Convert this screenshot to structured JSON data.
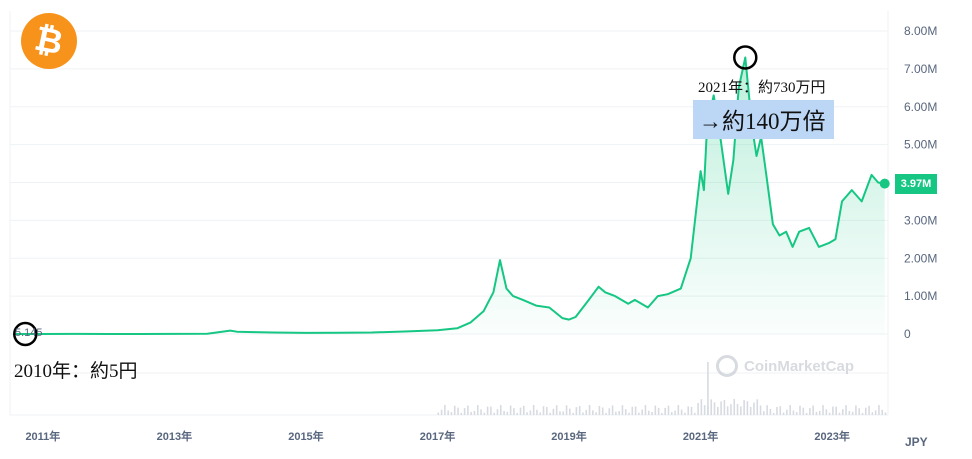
{
  "logo": {
    "icon": "bitcoin-icon",
    "glyph": "₿",
    "color": "#f7931a"
  },
  "annotations": {
    "peak_label": "2021年：約730万円",
    "multiple_label": "→約140万倍",
    "start_label": "2010年：約5円",
    "start_value_label": "5.145"
  },
  "watermark": {
    "icon": "coinmarketcap-icon",
    "text": "CoinMarketCap"
  },
  "current_price_label": "3.97M",
  "currency_label": "JPY",
  "colors": {
    "line": "#16c784",
    "area": "#16c784",
    "badge": "#16c784",
    "highlight": "#bcd6f5",
    "marker": "#000000"
  },
  "chart_data": {
    "type": "area",
    "x_label": "",
    "y_label": "",
    "y_unit": "JPY",
    "xlim": [
      2010.5,
      2023.85
    ],
    "ylim": [
      0,
      8000000
    ],
    "y_ticks": [
      0,
      1000000,
      2000000,
      3000000,
      4000000,
      5000000,
      6000000,
      7000000,
      8000000
    ],
    "y_tick_labels": [
      "0",
      "1.00M",
      "2.00M",
      "3.00M",
      "4.00M",
      "5.00M",
      "6.00M",
      "7.00M",
      "8.00M"
    ],
    "x_ticks": [
      2011,
      2013,
      2015,
      2017,
      2019,
      2021,
      2023
    ],
    "x_tick_labels": [
      "2011年",
      "2013年",
      "2015年",
      "2017年",
      "2019年",
      "2021年",
      "2023年"
    ],
    "grid": true,
    "series": [
      {
        "x": [
          2010.55,
          2011.0,
          2011.5,
          2012.0,
          2012.5,
          2013.0,
          2013.5,
          2013.85,
          2013.95,
          2014.2,
          2014.5,
          2015.0,
          2015.5,
          2016.0,
          2016.5,
          2017.0,
          2017.3,
          2017.5,
          2017.7,
          2017.85,
          2017.95,
          2018.05,
          2018.15,
          2018.3,
          2018.5,
          2018.7,
          2018.9,
          2019.0,
          2019.1,
          2019.3,
          2019.45,
          2019.55,
          2019.7,
          2019.9,
          2020.0,
          2020.2,
          2020.35,
          2020.5,
          2020.7,
          2020.85,
          2021.0,
          2021.05,
          2021.1,
          2021.2,
          2021.3,
          2021.42,
          2021.5,
          2021.58,
          2021.68,
          2021.78,
          2021.85,
          2021.92,
          2022.0,
          2022.1,
          2022.2,
          2022.3,
          2022.4,
          2022.5,
          2022.65,
          2022.8,
          2022.95,
          2023.05,
          2023.15,
          2023.3,
          2023.45,
          2023.6,
          2023.7,
          2023.8
        ],
        "y": [
          5.145,
          100,
          1500,
          500,
          800,
          1500,
          9000,
          90000,
          60000,
          50000,
          40000,
          30000,
          35000,
          40000,
          65000,
          100000,
          150000,
          300000,
          600000,
          1100000,
          1950000,
          1200000,
          1000000,
          900000,
          750000,
          700000,
          420000,
          380000,
          450000,
          900000,
          1250000,
          1100000,
          1000000,
          800000,
          900000,
          700000,
          1000000,
          1050000,
          1200000,
          2000000,
          4300000,
          3800000,
          5500000,
          6300000,
          5200000,
          3700000,
          4600000,
          6500000,
          7300000,
          5500000,
          4700000,
          5200000,
          4200000,
          2900000,
          2600000,
          2700000,
          2300000,
          2700000,
          2800000,
          2300000,
          2400000,
          2500000,
          3500000,
          3800000,
          3500000,
          4200000,
          4000000,
          3970000
        ]
      }
    ],
    "volume_note": "",
    "markers": [
      {
        "x": 2010.55,
        "y": 5.145
      },
      {
        "x": 2021.68,
        "y": 7300000
      }
    ]
  }
}
